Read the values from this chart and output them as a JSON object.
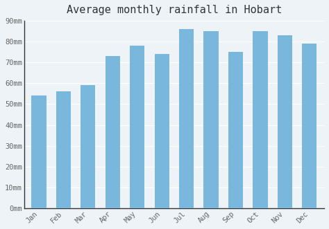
{
  "title": "Average monthly rainfall in Hobart",
  "months": [
    "Jan",
    "Feb",
    "Mar",
    "Apr",
    "May",
    "Jun",
    "Jul",
    "Aug",
    "Sep",
    "Oct",
    "Nov",
    "Dec"
  ],
  "values": [
    54,
    56,
    59,
    73,
    78,
    74,
    86,
    85,
    75,
    85,
    83,
    79
  ],
  "bar_color": "#79b8dc",
  "background_color": "#eef3f7",
  "plot_bg_color": "#eef3f7",
  "grid_color": "#ffffff",
  "left_spine_color": "#333333",
  "bottom_spine_color": "#333333",
  "ylim": [
    0,
    90
  ],
  "ytick_step": 10,
  "ylabel_suffix": "mm",
  "title_fontsize": 11,
  "tick_fontsize": 7.5,
  "title_color": "#333333",
  "tick_color": "#666666"
}
